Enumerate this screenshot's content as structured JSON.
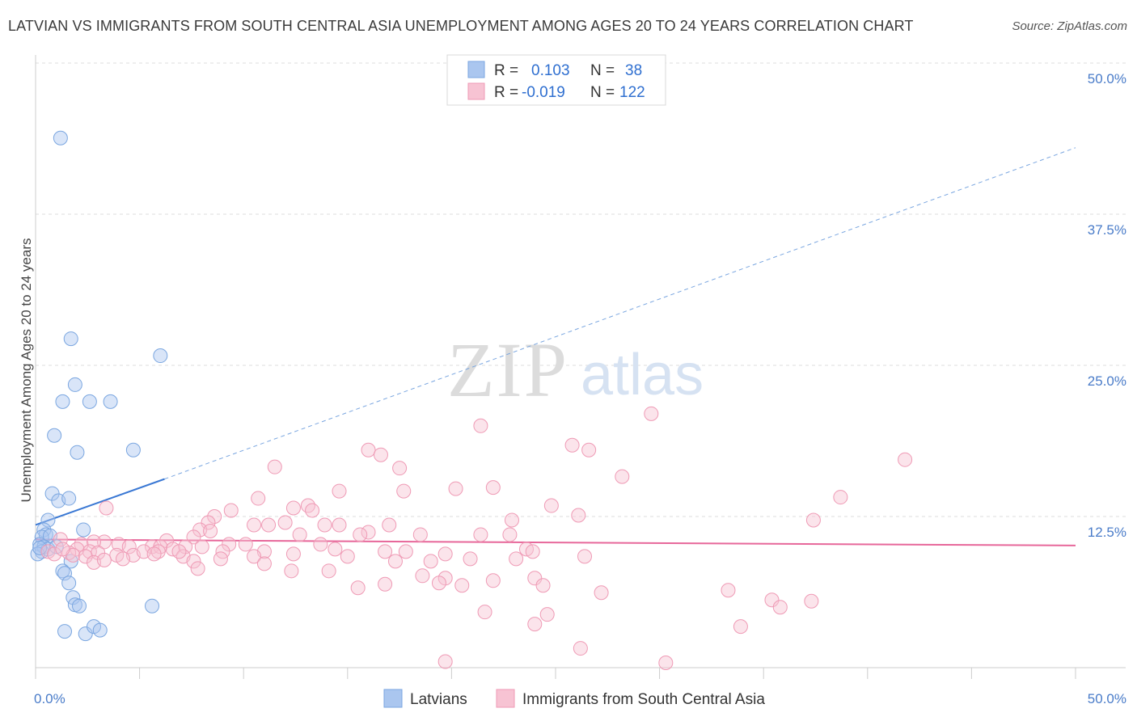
{
  "title": "LATVIAN VS IMMIGRANTS FROM SOUTH CENTRAL ASIA UNEMPLOYMENT AMONG AGES 20 TO 24 YEARS CORRELATION CHART",
  "source": "Source: ZipAtlas.com",
  "watermark": {
    "zip": "ZIP",
    "atlas": "atlas"
  },
  "chart_data": {
    "type": "scatter",
    "ylabel": "Unemployment Among Ages 20 to 24 years",
    "xlim": [
      0,
      50
    ],
    "ylim": [
      0,
      50
    ],
    "x_tick_labels": [
      "0.0%",
      "50.0%"
    ],
    "y_ticks": [
      12.5,
      25.0,
      37.5,
      50.0
    ],
    "y_tick_labels": [
      "12.5%",
      "25.0%",
      "37.5%",
      "50.0%"
    ],
    "grid": true,
    "legend_position": "top-center",
    "stats": [
      {
        "r_label": "R =",
        "r_value": "0.103",
        "n_label": "N =",
        "n_value": "38"
      },
      {
        "r_label": "R =",
        "r_value": "-0.019",
        "n_label": "N =",
        "n_value": "122"
      }
    ],
    "series": [
      {
        "name": "Latvians",
        "color": "#7aa6e0",
        "fill": "#aac6ef",
        "trend": {
          "x0": 0,
          "y0": 11.8,
          "x1": 6.2,
          "y1": 15.6,
          "dash_x1": 50,
          "dash_y1": 43
        },
        "points": [
          [
            1.2,
            43.8
          ],
          [
            1.7,
            27.2
          ],
          [
            6.0,
            25.8
          ],
          [
            1.9,
            23.4
          ],
          [
            1.3,
            22.0
          ],
          [
            2.6,
            22.0
          ],
          [
            3.6,
            22.0
          ],
          [
            0.9,
            19.2
          ],
          [
            2.0,
            17.8
          ],
          [
            4.7,
            18.0
          ],
          [
            0.8,
            14.4
          ],
          [
            1.1,
            13.8
          ],
          [
            1.6,
            14.0
          ],
          [
            0.6,
            12.2
          ],
          [
            0.4,
            11.4
          ],
          [
            0.5,
            11.0
          ],
          [
            0.3,
            10.8
          ],
          [
            0.7,
            10.9
          ],
          [
            2.3,
            11.4
          ],
          [
            0.2,
            10.2
          ],
          [
            0.4,
            10.0
          ],
          [
            0.6,
            9.8
          ],
          [
            1.0,
            10.0
          ],
          [
            0.3,
            9.6
          ],
          [
            0.1,
            9.4
          ],
          [
            1.7,
            8.8
          ],
          [
            1.3,
            8.0
          ],
          [
            1.4,
            7.8
          ],
          [
            1.6,
            7.0
          ],
          [
            1.8,
            5.8
          ],
          [
            1.9,
            5.2
          ],
          [
            2.1,
            5.1
          ],
          [
            5.6,
            5.1
          ],
          [
            1.4,
            3.0
          ],
          [
            2.4,
            2.8
          ],
          [
            2.8,
            3.4
          ],
          [
            3.1,
            3.1
          ],
          [
            0.2,
            9.9
          ]
        ]
      },
      {
        "name": "Immigrants from South Central Asia",
        "color": "#ef9ab5",
        "fill": "#f7c3d3",
        "trend": {
          "x0": 0,
          "y0": 10.6,
          "x1": 50,
          "y1": 10.1
        },
        "points": [
          [
            29.6,
            21.0
          ],
          [
            21.4,
            20.0
          ],
          [
            25.8,
            18.4
          ],
          [
            26.6,
            18.0
          ],
          [
            16.0,
            18.0
          ],
          [
            16.6,
            17.6
          ],
          [
            41.8,
            17.2
          ],
          [
            11.5,
            16.6
          ],
          [
            17.5,
            16.5
          ],
          [
            28.2,
            15.8
          ],
          [
            20.2,
            14.8
          ],
          [
            22.0,
            14.9
          ],
          [
            14.6,
            14.6
          ],
          [
            17.7,
            14.6
          ],
          [
            38.7,
            14.1
          ],
          [
            10.7,
            14.0
          ],
          [
            3.4,
            13.2
          ],
          [
            12.4,
            13.2
          ],
          [
            13.1,
            13.4
          ],
          [
            13.3,
            13.0
          ],
          [
            9.4,
            13.0
          ],
          [
            24.8,
            13.4
          ],
          [
            26.1,
            12.6
          ],
          [
            8.6,
            12.5
          ],
          [
            37.4,
            12.2
          ],
          [
            8.3,
            12.0
          ],
          [
            22.9,
            12.2
          ],
          [
            12.0,
            12.0
          ],
          [
            10.5,
            11.8
          ],
          [
            11.2,
            11.8
          ],
          [
            13.9,
            11.8
          ],
          [
            14.6,
            11.8
          ],
          [
            17.0,
            11.8
          ],
          [
            7.9,
            11.4
          ],
          [
            8.4,
            11.3
          ],
          [
            12.7,
            11.0
          ],
          [
            16.0,
            11.2
          ],
          [
            18.5,
            11.0
          ],
          [
            21.4,
            11.0
          ],
          [
            15.6,
            11.0
          ],
          [
            22.8,
            11.0
          ],
          [
            7.6,
            10.8
          ],
          [
            1.2,
            10.6
          ],
          [
            6.3,
            10.5
          ],
          [
            3.3,
            10.4
          ],
          [
            2.2,
            10.2
          ],
          [
            2.8,
            10.4
          ],
          [
            4.0,
            10.2
          ],
          [
            4.5,
            10.0
          ],
          [
            5.6,
            10.0
          ],
          [
            6.0,
            10.0
          ],
          [
            7.2,
            10.0
          ],
          [
            8.0,
            10.0
          ],
          [
            9.3,
            10.2
          ],
          [
            10.1,
            10.2
          ],
          [
            13.7,
            10.2
          ],
          [
            14.4,
            9.8
          ],
          [
            16.8,
            9.6
          ],
          [
            17.8,
            9.6
          ],
          [
            19.7,
            9.4
          ],
          [
            23.6,
            9.8
          ],
          [
            23.9,
            9.6
          ],
          [
            2.0,
            9.8
          ],
          [
            2.6,
            9.6
          ],
          [
            3.0,
            9.5
          ],
          [
            4.7,
            9.3
          ],
          [
            5.2,
            9.6
          ],
          [
            5.9,
            9.6
          ],
          [
            6.6,
            9.8
          ],
          [
            7.1,
            9.2
          ],
          [
            1.6,
            9.5
          ],
          [
            1.8,
            9.3
          ],
          [
            2.4,
            9.2
          ],
          [
            3.9,
            9.3
          ],
          [
            4.2,
            9.0
          ],
          [
            6.9,
            9.6
          ],
          [
            9.0,
            9.6
          ],
          [
            11.0,
            9.6
          ],
          [
            12.4,
            9.4
          ],
          [
            15.0,
            9.2
          ],
          [
            17.3,
            8.8
          ],
          [
            20.9,
            9.0
          ],
          [
            23.1,
            9.0
          ],
          [
            26.4,
            9.2
          ],
          [
            7.6,
            8.8
          ],
          [
            8.9,
            9.0
          ],
          [
            10.5,
            9.2
          ],
          [
            11.0,
            8.6
          ],
          [
            19.0,
            8.8
          ],
          [
            0.6,
            9.6
          ],
          [
            0.9,
            9.4
          ],
          [
            1.3,
            9.8
          ],
          [
            2.8,
            8.7
          ],
          [
            3.3,
            8.9
          ],
          [
            7.8,
            8.2
          ],
          [
            12.3,
            8.0
          ],
          [
            14.1,
            8.0
          ],
          [
            18.6,
            7.6
          ],
          [
            19.7,
            7.4
          ],
          [
            24.0,
            7.4
          ],
          [
            5.7,
            9.4
          ],
          [
            19.4,
            7.0
          ],
          [
            16.8,
            6.9
          ],
          [
            20.5,
            6.8
          ],
          [
            22.0,
            7.2
          ],
          [
            24.4,
            6.8
          ],
          [
            15.5,
            6.6
          ],
          [
            27.2,
            6.2
          ],
          [
            33.3,
            6.4
          ],
          [
            35.4,
            5.6
          ],
          [
            35.8,
            5.0
          ],
          [
            37.3,
            5.5
          ],
          [
            21.6,
            4.6
          ],
          [
            24.6,
            4.4
          ],
          [
            24.0,
            3.6
          ],
          [
            33.9,
            3.4
          ],
          [
            26.2,
            1.6
          ],
          [
            19.7,
            0.5
          ],
          [
            30.3,
            0.4
          ]
        ]
      }
    ]
  }
}
